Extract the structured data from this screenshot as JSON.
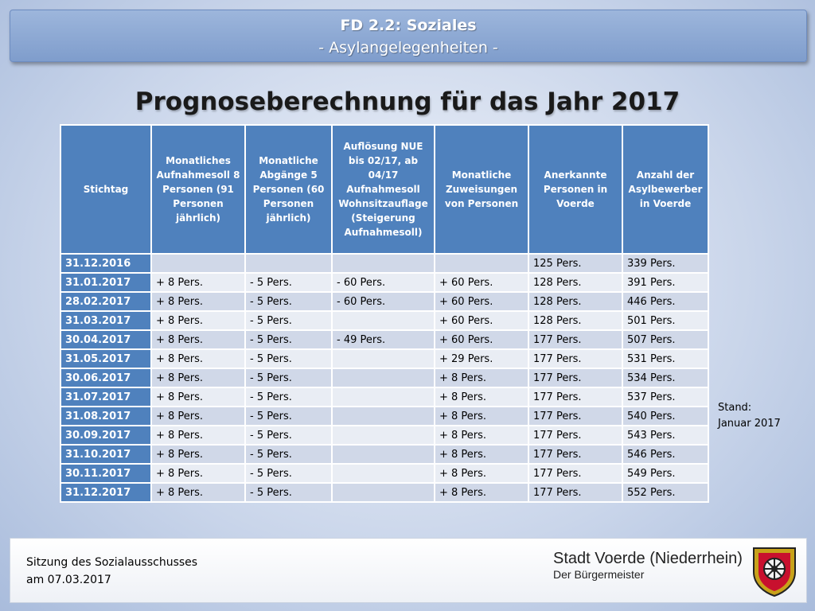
{
  "header": {
    "line1": "FD 2.2: Soziales",
    "line2": "- Asylangelegenheiten -"
  },
  "title": "Prognoseberechnung für das Jahr 2017",
  "table": {
    "columns": [
      "Stichtag",
      "Monatliches Aufnahmesoll 8 Personen (91 Personen jährlich)",
      "Monatliche Abgänge 5 Personen (60 Personen jährlich)",
      "Auflösung NUE bis 02/17, ab 04/17 Aufnahmesoll Wohnsitzauflage (Steigerung Aufnahmesoll)",
      "Monatliche Zuweisungen von Personen",
      "Anerkannte Personen in Voerde",
      "Anzahl der Asylbewerber in Voerde"
    ],
    "rows": [
      [
        "31.12.2016",
        "",
        "",
        "",
        "",
        "125 Pers.",
        "339 Pers."
      ],
      [
        "31.01.2017",
        "+ 8 Pers.",
        "- 5 Pers.",
        "- 60 Pers.",
        "+ 60 Pers.",
        "128 Pers.",
        "391 Pers."
      ],
      [
        "28.02.2017",
        "+ 8 Pers.",
        "- 5 Pers.",
        "- 60 Pers.",
        "+ 60 Pers.",
        "128 Pers.",
        "446 Pers."
      ],
      [
        "31.03.2017",
        "+ 8 Pers.",
        "- 5 Pers.",
        "",
        "+ 60 Pers.",
        "128 Pers.",
        "501 Pers."
      ],
      [
        "30.04.2017",
        "+ 8 Pers.",
        "- 5 Pers.",
        "- 49 Pers.",
        "+ 60 Pers.",
        "177 Pers.",
        "507 Pers."
      ],
      [
        "31.05.2017",
        "+ 8 Pers.",
        "- 5 Pers.",
        "",
        "+ 29 Pers.",
        "177 Pers.",
        "531 Pers."
      ],
      [
        "30.06.2017",
        "+ 8 Pers.",
        "- 5 Pers.",
        "",
        "+ 8 Pers.",
        "177 Pers.",
        "534 Pers."
      ],
      [
        "31.07.2017",
        "+ 8 Pers.",
        "- 5 Pers.",
        "",
        "+ 8 Pers.",
        "177 Pers.",
        "537 Pers."
      ],
      [
        "31.08.2017",
        "+ 8 Pers.",
        "- 5 Pers.",
        "",
        "+ 8 Pers.",
        "177 Pers.",
        "540 Pers."
      ],
      [
        "30.09.2017",
        "+ 8 Pers.",
        "- 5 Pers.",
        "",
        "+ 8 Pers.",
        "177 Pers.",
        "543 Pers."
      ],
      [
        "31.10.2017",
        "+ 8 Pers.",
        "- 5 Pers.",
        "",
        "+ 8 Pers.",
        "177 Pers.",
        "546 Pers."
      ],
      [
        "30.11.2017",
        "+ 8 Pers.",
        "- 5 Pers.",
        "",
        "+ 8 Pers.",
        "177 Pers.",
        "549 Pers."
      ],
      [
        "31.12.2017",
        "+ 8 Pers.",
        "- 5 Pers.",
        "",
        "+ 8 Pers.",
        "177 Pers.",
        "552 Pers."
      ]
    ]
  },
  "stand": {
    "label": "Stand:",
    "date": "Januar 2017"
  },
  "footer": {
    "meeting_line1": "Sitzung des Sozialausschusses",
    "meeting_line2": "am 07.03.2017",
    "city": "Stadt Voerde (Niederrhein)",
    "mayor": "Der Bürgermeister"
  },
  "colors": {
    "table_header": "#4f81bd",
    "row_odd": "#d0d8e8",
    "row_even": "#e9edf4",
    "banner": "#7f9dcc"
  },
  "icons": [
    "city-crest-icon"
  ]
}
